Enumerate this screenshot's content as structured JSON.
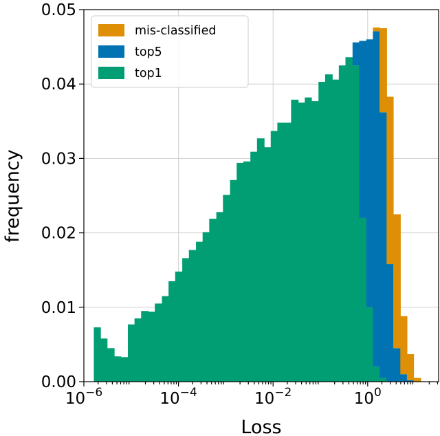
{
  "chart_data": {
    "type": "histogram",
    "x_scale": "log",
    "xlabel": "Loss",
    "ylabel": "frequency",
    "xlim": [
      1e-06,
      31.6
    ],
    "ylim": [
      0,
      0.05
    ],
    "grid": true,
    "legend_position": "top-left",
    "x_ticks": [
      {
        "value": 1e-06,
        "base": "10",
        "exp": "−6"
      },
      {
        "value": 0.0001,
        "base": "10",
        "exp": "−4"
      },
      {
        "value": 0.01,
        "base": "10",
        "exp": "−2"
      },
      {
        "value": 1,
        "base": "10",
        "exp": "0"
      }
    ],
    "y_ticks": [
      {
        "value": 0,
        "label": "0.00"
      },
      {
        "value": 0.01,
        "label": "0.01"
      },
      {
        "value": 0.02,
        "label": "0.02"
      },
      {
        "value": 0.03,
        "label": "0.03"
      },
      {
        "value": 0.04,
        "label": "0.04"
      },
      {
        "value": 0.05,
        "label": "0.05"
      }
    ],
    "bin_edges_log10": [
      -5.79,
      -5.65,
      -5.51,
      -5.36,
      -5.22,
      -5.07,
      -4.93,
      -4.79,
      -4.64,
      -4.5,
      -4.35,
      -4.21,
      -4.07,
      -3.92,
      -3.78,
      -3.63,
      -3.49,
      -3.35,
      -3.2,
      -3.06,
      -2.91,
      -2.77,
      -2.63,
      -2.48,
      -2.34,
      -2.19,
      -2.05,
      -1.91,
      -1.76,
      -1.62,
      -1.47,
      -1.33,
      -1.19,
      -1.04,
      -0.9,
      -0.75,
      -0.61,
      -0.47,
      -0.32,
      -0.18,
      -0.03,
      0.11,
      0.25,
      0.4,
      0.54,
      0.69,
      0.83,
      0.97,
      1.12
    ],
    "series": [
      {
        "name": "top1",
        "color": "#029e73",
        "values": [
          0.0073,
          0.0058,
          0.0045,
          0.0034,
          0.0033,
          0.0077,
          0.0085,
          0.0095,
          0.0094,
          0.0105,
          0.0115,
          0.0135,
          0.0148,
          0.0166,
          0.0177,
          0.0188,
          0.0201,
          0.0219,
          0.0228,
          0.0251,
          0.0271,
          0.0294,
          0.0296,
          0.0309,
          0.0327,
          0.0315,
          0.0337,
          0.0348,
          0.0348,
          0.0379,
          0.0375,
          0.0382,
          0.0377,
          0.0403,
          0.0413,
          0.0406,
          0.0425,
          0.0436,
          0.0425,
          0.022,
          0.01,
          0.002,
          0.0005,
          0,
          0,
          0,
          0,
          0
        ]
      },
      {
        "name": "top5",
        "color": "#0173b2",
        "values": [
          0,
          0,
          0,
          0,
          0,
          0,
          0,
          0,
          0,
          0,
          0,
          0,
          0,
          0,
          0,
          0,
          0,
          0,
          0,
          0,
          0,
          0,
          0,
          0,
          0,
          0,
          0,
          0,
          0,
          0,
          0,
          0,
          0,
          0,
          0,
          0,
          0,
          0,
          0.0031,
          0.0238,
          0.036,
          0.0451,
          0.0357,
          0.0158,
          0.0045,
          0.001,
          0.0002,
          0
        ]
      },
      {
        "name": "mis-classified",
        "color": "#de8f05",
        "values": [
          0,
          0,
          0,
          0,
          0,
          0,
          0,
          0,
          0,
          0,
          0,
          0,
          0,
          0,
          0,
          0,
          0,
          0,
          0,
          0,
          0,
          0,
          0,
          0,
          0,
          0,
          0,
          0,
          0,
          0,
          0,
          0,
          0,
          0,
          0,
          0,
          0,
          0,
          0,
          0,
          0,
          0.0005,
          0.0113,
          0.0225,
          0.018,
          0.0078,
          0.0035,
          0.0005
        ]
      }
    ],
    "legend_order": [
      "mis-classified",
      "top5",
      "top1"
    ]
  }
}
